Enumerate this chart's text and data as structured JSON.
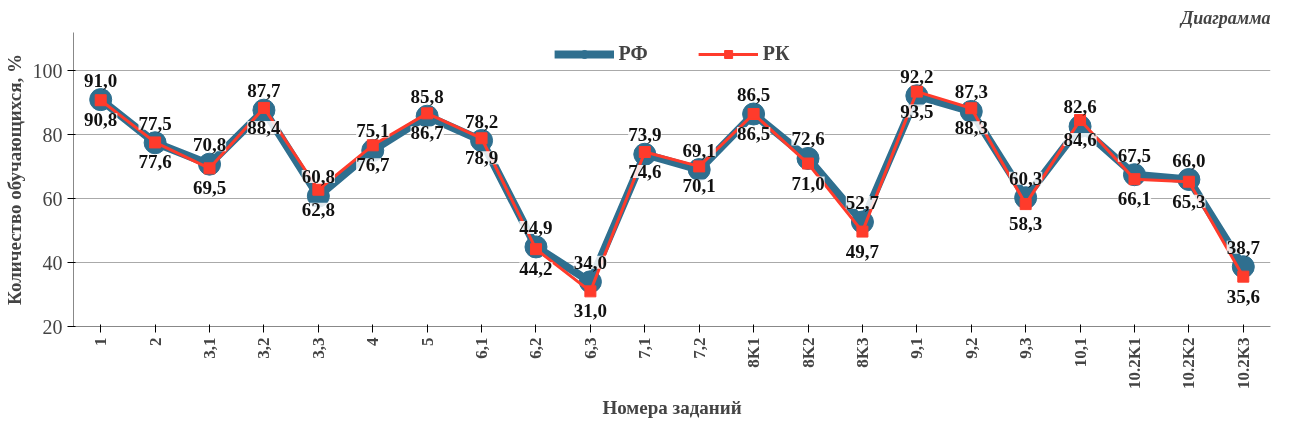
{
  "chart_data": {
    "type": "line",
    "xlabel": "Номера заданий",
    "ylabel": "Количество обучающихся, %",
    "annotations": [
      "Диаграмма"
    ],
    "categories": [
      "1",
      "2",
      "3,1",
      "3,2",
      "3,3",
      "4",
      "5",
      "6,1",
      "6,2",
      "6,3",
      "7,1",
      "7,2",
      "8K1",
      "8K2",
      "8K3",
      "9,1",
      "9,2",
      "9,3",
      "10,1",
      "10.2K1",
      "10.2K2",
      "10.2K3"
    ],
    "series": [
      {
        "name": "РФ",
        "color": "#2f6f8f",
        "marker": "circle",
        "values": [
          91.0,
          77.5,
          70.8,
          87.7,
          60.8,
          75.1,
          85.8,
          78.2,
          44.9,
          34.0,
          73.9,
          69.1,
          86.5,
          72.6,
          52.7,
          92.2,
          87.3,
          60.3,
          82.6,
          67.5,
          66.0,
          38.7
        ],
        "value_labels": [
          "91,0",
          "77,5",
          "70,8",
          "87,7",
          "60,8",
          "75,1",
          "85,8",
          "78,2",
          "44,9",
          "34,0",
          "73,9",
          "69,1",
          "86,5",
          "72,6",
          "52,7",
          "92,2",
          "87,3",
          "60,3",
          "82,6",
          "67,5",
          "66,0",
          "38,7"
        ]
      },
      {
        "name": "РК",
        "color": "#ff3b2b",
        "marker": "square",
        "values": [
          90.8,
          77.6,
          69.5,
          88.4,
          62.8,
          76.7,
          86.7,
          78.9,
          44.2,
          31.0,
          74.6,
          70.1,
          86.5,
          71.0,
          49.7,
          93.5,
          88.3,
          58.3,
          84.6,
          66.1,
          65.3,
          35.6
        ],
        "value_labels": [
          "90,8",
          "77,6",
          "69,5",
          "88,4",
          "62,8",
          "76,7",
          "86,7",
          "78,9",
          "44,2",
          "31,0",
          "74,6",
          "70,1",
          "86,5",
          "71,0",
          "49,7",
          "93,5",
          "88,3",
          "58,3",
          "84,6",
          "66,1",
          "65,3",
          "35,6"
        ]
      }
    ],
    "ylim": [
      20,
      112
    ],
    "yticks": [
      20,
      40,
      60,
      80,
      100
    ],
    "grid": "y",
    "legend": "top"
  }
}
